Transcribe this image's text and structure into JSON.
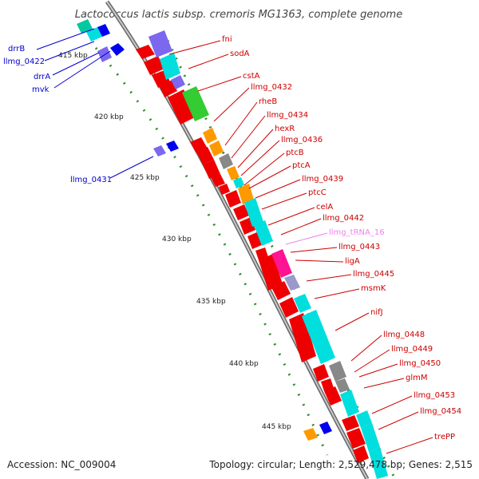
{
  "title": "Lactococcus lactis subsp. cremoris MG1363, complete genome",
  "accession_text": "Accession: NC_009004",
  "summary_text": "Topology: circular; Length: 2,529,478 bp; Genes: 2,515",
  "colors": {
    "backbone": "#999999",
    "scale_ticks": "#2e8b2e",
    "forward_label": "#cc0000",
    "reverse_label": "#0000cc",
    "trna_label": "#ee82ee",
    "cds": "#ee0000",
    "cog_cyan": "#00dede",
    "cog_slate": "#7b68ee",
    "cog_green": "#33cc33",
    "cog_orange": "#ff9900",
    "cog_magenta": "#ff1493",
    "cog_gray": "#888888",
    "cog_teal": "#00c8a0",
    "reverse_cds": "#0000ee"
  },
  "kbp_markers": [
    "415 kbp",
    "420 kbp",
    "425 kbp",
    "430 kbp",
    "435 kbp",
    "440 kbp",
    "445 kbp"
  ],
  "forward_genes": [
    "fni",
    "sodA",
    "cstA",
    "llmg_0432",
    "rheB",
    "llmg_0434",
    "hexR",
    "llmg_0436",
    "ptcB",
    "ptcA",
    "llmg_0439",
    "ptcC",
    "celA",
    "llmg_0442",
    "llmg_tRNA_16",
    "llmg_0443",
    "ligA",
    "llmg_0445",
    "msmK",
    "nifJ",
    "llmg_0448",
    "llmg_0449",
    "llmg_0450",
    "glmM",
    "llmg_0453",
    "llmg_0454",
    "trePP"
  ],
  "reverse_genes": [
    "drrB",
    "llmg_0422",
    "drrA",
    "mvk",
    "llmg_0431"
  ]
}
